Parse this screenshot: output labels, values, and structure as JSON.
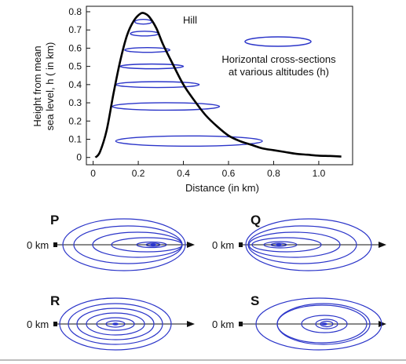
{
  "colors": {
    "contour": "#2b35c9",
    "curve": "#000000",
    "axis": "#111111"
  },
  "top_chart": {
    "hill_label": "Hill",
    "legend_text_line1": "Horizontal cross-sections",
    "legend_text_line2": "at various altitudes (h)",
    "ylabel_line1": "Height from mean",
    "ylabel_line2": "sea level, h ( in km)",
    "xlabel": "Distance (in km)"
  },
  "chart_data": {
    "type": "line",
    "x_ticks": [
      "0",
      "0.2",
      "0.4",
      "0.6",
      "0.8",
      "1.0"
    ],
    "y_ticks": [
      "0",
      "0.1",
      "0.2",
      "0.3",
      "0.4",
      "0.5",
      "0.6",
      "0.7",
      "0.8"
    ],
    "xlim": [
      -0.03,
      1.15
    ],
    "ylim": [
      -0.04,
      0.83
    ],
    "series": [
      {
        "x": [
          0.01,
          0.03,
          0.06,
          0.09,
          0.12,
          0.15,
          0.18,
          0.21,
          0.23,
          0.25,
          0.28,
          0.31,
          0.35,
          0.4,
          0.45,
          0.5,
          0.55,
          0.6,
          0.65,
          0.7,
          0.75,
          0.8,
          0.85,
          0.9,
          0.95,
          1.0,
          1.05,
          1.1
        ],
        "y": [
          0.0,
          0.03,
          0.15,
          0.35,
          0.53,
          0.67,
          0.75,
          0.79,
          0.79,
          0.77,
          0.71,
          0.62,
          0.52,
          0.4,
          0.31,
          0.23,
          0.17,
          0.12,
          0.09,
          0.07,
          0.05,
          0.04,
          0.03,
          0.02,
          0.015,
          0.01,
          0.008,
          0.005
        ]
      }
    ],
    "cross_sections": [
      {
        "h": 0.09,
        "x_from": 0.1,
        "x_to": 0.75
      },
      {
        "h": 0.28,
        "x_from": 0.085,
        "x_to": 0.56
      },
      {
        "h": 0.4,
        "x_from": 0.1,
        "x_to": 0.47
      },
      {
        "h": 0.5,
        "x_from": 0.12,
        "x_to": 0.4
      },
      {
        "h": 0.59,
        "x_from": 0.14,
        "x_to": 0.34
      },
      {
        "h": 0.68,
        "x_from": 0.165,
        "x_to": 0.29
      },
      {
        "h": 0.745,
        "x_from": 0.185,
        "x_to": 0.26
      }
    ]
  },
  "panels": [
    {
      "letter": "P",
      "zero_label": "0 km"
    },
    {
      "letter": "Q",
      "zero_label": "0 km"
    },
    {
      "letter": "R",
      "zero_label": "0 km"
    },
    {
      "letter": "S",
      "zero_label": "0 km"
    }
  ]
}
